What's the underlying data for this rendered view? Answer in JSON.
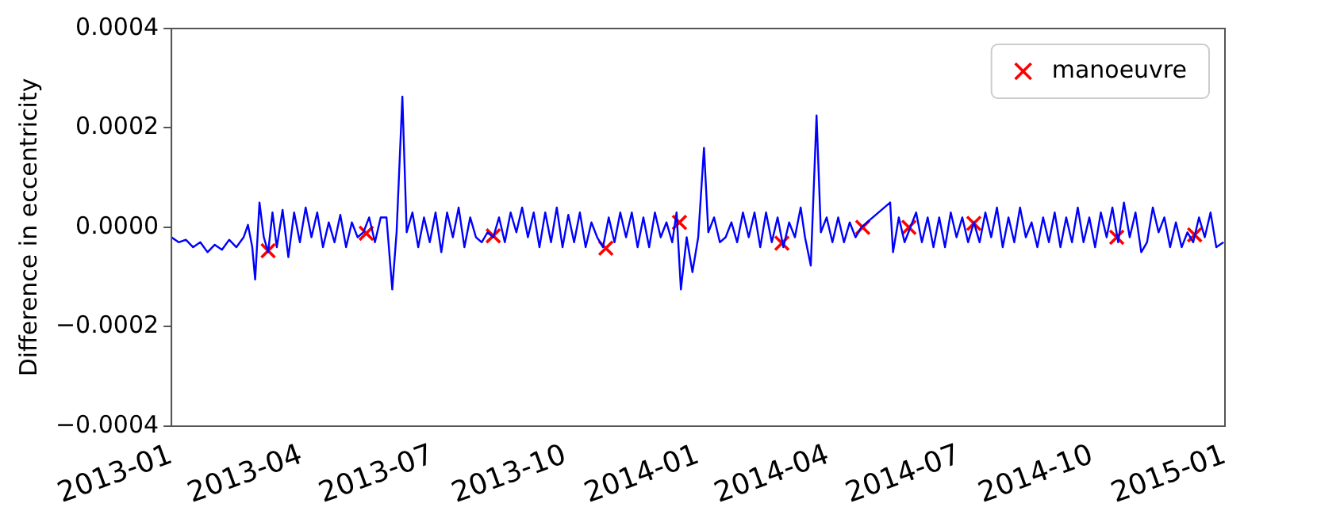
{
  "chart_data": {
    "type": "line",
    "ylabel": "Difference in eccentricity",
    "xlim": [
      "2013-01-01",
      "2015-01-01"
    ],
    "xticks": [
      {
        "value": "2013-01-01",
        "label": "2013-01"
      },
      {
        "value": "2013-04-01",
        "label": "2013-04"
      },
      {
        "value": "2013-07-01",
        "label": "2013-07"
      },
      {
        "value": "2013-10-01",
        "label": "2013-10"
      },
      {
        "value": "2014-01-01",
        "label": "2014-01"
      },
      {
        "value": "2014-04-01",
        "label": "2014-04"
      },
      {
        "value": "2014-07-01",
        "label": "2014-07"
      },
      {
        "value": "2014-10-01",
        "label": "2014-10"
      },
      {
        "value": "2015-01-01",
        "label": "2015-01"
      }
    ],
    "ylim": [
      -0.0004,
      0.0004
    ],
    "yticks": [
      {
        "value": -0.0004,
        "label": "−0.0004"
      },
      {
        "value": -0.0002,
        "label": "−0.0002"
      },
      {
        "value": 0,
        "label": "0.0000"
      },
      {
        "value": 0.0002,
        "label": "0.0002"
      },
      {
        "value": 0.0004,
        "label": "0.0004"
      }
    ],
    "grid": false,
    "legend": "top right",
    "series": [
      {
        "color": "#0000ff",
        "marker": "none",
        "line_style": "solid",
        "x": [
          "2013-01-01",
          "2013-01-06",
          "2013-01-11",
          "2013-01-16",
          "2013-01-21",
          "2013-01-26",
          "2013-01-31",
          "2013-02-05",
          "2013-02-10",
          "2013-02-15",
          "2013-02-20",
          "2013-02-23",
          "2013-02-26",
          "2013-02-28",
          "2013-03-03",
          "2013-03-06",
          "2013-03-09",
          "2013-03-12",
          "2013-03-15",
          "2013-03-19",
          "2013-03-23",
          "2013-03-27",
          "2013-03-31",
          "2013-04-04",
          "2013-04-08",
          "2013-04-12",
          "2013-04-16",
          "2013-04-20",
          "2013-04-24",
          "2013-04-28",
          "2013-05-02",
          "2013-05-06",
          "2013-05-10",
          "2013-05-14",
          "2013-05-18",
          "2013-05-22",
          "2013-05-26",
          "2013-05-30",
          "2013-06-03",
          "2013-06-06",
          "2013-06-10",
          "2013-06-13",
          "2013-06-17",
          "2013-06-21",
          "2013-06-25",
          "2013-06-29",
          "2013-07-03",
          "2013-07-07",
          "2013-07-11",
          "2013-07-15",
          "2013-07-19",
          "2013-07-23",
          "2013-07-27",
          "2013-07-31",
          "2013-08-04",
          "2013-08-08",
          "2013-08-12",
          "2013-08-16",
          "2013-08-20",
          "2013-08-24",
          "2013-08-28",
          "2013-09-01",
          "2013-09-05",
          "2013-09-09",
          "2013-09-13",
          "2013-09-17",
          "2013-09-21",
          "2013-09-25",
          "2013-09-29",
          "2013-10-03",
          "2013-10-07",
          "2013-10-11",
          "2013-10-15",
          "2013-10-19",
          "2013-10-23",
          "2013-10-27",
          "2013-10-31",
          "2013-11-04",
          "2013-11-08",
          "2013-11-12",
          "2013-11-16",
          "2013-11-20",
          "2013-11-24",
          "2013-11-28",
          "2013-12-02",
          "2013-12-06",
          "2013-12-10",
          "2013-12-14",
          "2013-12-17",
          "2013-12-20",
          "2013-12-24",
          "2013-12-28",
          "2014-01-01",
          "2014-01-05",
          "2014-01-08",
          "2014-01-12",
          "2014-01-16",
          "2014-01-20",
          "2014-01-24",
          "2014-01-28",
          "2014-02-01",
          "2014-02-05",
          "2014-02-09",
          "2014-02-13",
          "2014-02-17",
          "2014-02-21",
          "2014-02-25",
          "2014-03-01",
          "2014-03-05",
          "2014-03-09",
          "2014-03-13",
          "2014-03-16",
          "2014-03-20",
          "2014-03-24",
          "2014-03-27",
          "2014-03-31",
          "2014-04-04",
          "2014-04-08",
          "2014-04-12",
          "2014-04-16",
          "2014-04-20",
          "2014-04-24",
          "2014-04-28",
          "2014-05-14",
          "2014-05-16",
          "2014-05-20",
          "2014-05-24",
          "2014-05-28",
          "2014-06-01",
          "2014-06-05",
          "2014-06-09",
          "2014-06-13",
          "2014-06-17",
          "2014-06-21",
          "2014-06-25",
          "2014-06-29",
          "2014-07-03",
          "2014-07-07",
          "2014-07-11",
          "2014-07-15",
          "2014-07-19",
          "2014-07-23",
          "2014-07-27",
          "2014-07-31",
          "2014-08-04",
          "2014-08-08",
          "2014-08-12",
          "2014-08-16",
          "2014-08-20",
          "2014-08-24",
          "2014-08-28",
          "2014-09-01",
          "2014-09-05",
          "2014-09-09",
          "2014-09-13",
          "2014-09-17",
          "2014-09-21",
          "2014-09-25",
          "2014-09-29",
          "2014-10-03",
          "2014-10-07",
          "2014-10-11",
          "2014-10-15",
          "2014-10-19",
          "2014-10-23",
          "2014-10-27",
          "2014-10-31",
          "2014-11-04",
          "2014-11-08",
          "2014-11-12",
          "2014-11-16",
          "2014-11-20",
          "2014-11-24",
          "2014-11-28",
          "2014-12-02",
          "2014-12-06",
          "2014-12-10",
          "2014-12-14",
          "2014-12-18",
          "2014-12-22",
          "2014-12-26",
          "2014-12-31"
        ],
        "values": [
          -2e-05,
          -3e-05,
          -2.5e-05,
          -4e-05,
          -3e-05,
          -5e-05,
          -3.5e-05,
          -4.5e-05,
          -2.5e-05,
          -4e-05,
          -2e-05,
          5e-06,
          -4e-05,
          -0.000105,
          5e-05,
          -2e-05,
          -5e-05,
          3e-05,
          -4e-05,
          3.5e-05,
          -6e-05,
          3e-05,
          -3e-05,
          4e-05,
          -2e-05,
          3e-05,
          -4e-05,
          1e-05,
          -3e-05,
          2.5e-05,
          -4e-05,
          1e-05,
          -2e-05,
          -1e-05,
          2e-05,
          -3e-05,
          2e-05,
          2e-05,
          -0.000125,
          -1e-05,
          0.000263,
          -1e-05,
          3e-05,
          -4e-05,
          2e-05,
          -3e-05,
          3e-05,
          -5e-05,
          3e-05,
          -2e-05,
          4e-05,
          -4e-05,
          2e-05,
          -2e-05,
          -3e-05,
          -1e-05,
          -2e-05,
          2e-05,
          -3e-05,
          3e-05,
          -1e-05,
          4e-05,
          -2e-05,
          3e-05,
          -4e-05,
          3e-05,
          -3e-05,
          4e-05,
          -4e-05,
          2.5e-05,
          -3e-05,
          3e-05,
          -4e-05,
          1e-05,
          -2e-05,
          -4e-05,
          2e-05,
          -3e-05,
          3e-05,
          -2e-05,
          3e-05,
          -4e-05,
          2e-05,
          -4e-05,
          3e-05,
          -2e-05,
          1e-05,
          -3e-05,
          3e-05,
          -0.000125,
          -2e-05,
          -9e-05,
          -2e-05,
          0.00016,
          -1e-05,
          2e-05,
          -3e-05,
          -2e-05,
          1e-05,
          -3e-05,
          3e-05,
          -2e-05,
          3e-05,
          -4e-05,
          3e-05,
          -3e-05,
          2e-05,
          -4e-05,
          1e-05,
          -2e-05,
          4e-05,
          -2e-05,
          -7.7e-05,
          0.000225,
          -1e-05,
          2e-05,
          -3e-05,
          2e-05,
          -3e-05,
          1e-05,
          -2e-05,
          0,
          1e-05,
          5e-05,
          -5e-05,
          2e-05,
          -3e-05,
          0,
          3e-05,
          -3e-05,
          2e-05,
          -4e-05,
          2e-05,
          -4e-05,
          3e-05,
          -2e-05,
          2e-05,
          -3e-05,
          1e-05,
          -3e-05,
          3e-05,
          -2e-05,
          4e-05,
          -4e-05,
          2e-05,
          -3e-05,
          4e-05,
          -2e-05,
          1e-05,
          -4e-05,
          2e-05,
          -3e-05,
          3e-05,
          -4e-05,
          2e-05,
          -3e-05,
          4e-05,
          -3e-05,
          2e-05,
          -4e-05,
          3e-05,
          -2e-05,
          4e-05,
          -3e-05,
          5e-05,
          -2e-05,
          3e-05,
          -5e-05,
          -3e-05,
          4e-05,
          -1e-05,
          2e-05,
          -4e-05,
          1e-05,
          -4e-05,
          -1e-05,
          -3e-05,
          2e-05,
          -2e-05,
          3e-05,
          -4e-05,
          -3e-05
        ]
      },
      {
        "type": "scatter",
        "name": "manoeuvre",
        "color": "#ff0000",
        "marker": "cross",
        "x": [
          "2013-03-09",
          "2013-05-16",
          "2013-08-12",
          "2013-10-29",
          "2013-12-19",
          "2014-02-28",
          "2014-04-25",
          "2014-05-27",
          "2014-07-11",
          "2014-10-18",
          "2014-12-11"
        ],
        "values": [
          -4.7e-05,
          -1.2e-05,
          -1.7e-05,
          -4.2e-05,
          1e-05,
          -3.2e-05,
          0,
          0,
          8e-06,
          -2e-05,
          -1.5e-05
        ]
      }
    ]
  }
}
